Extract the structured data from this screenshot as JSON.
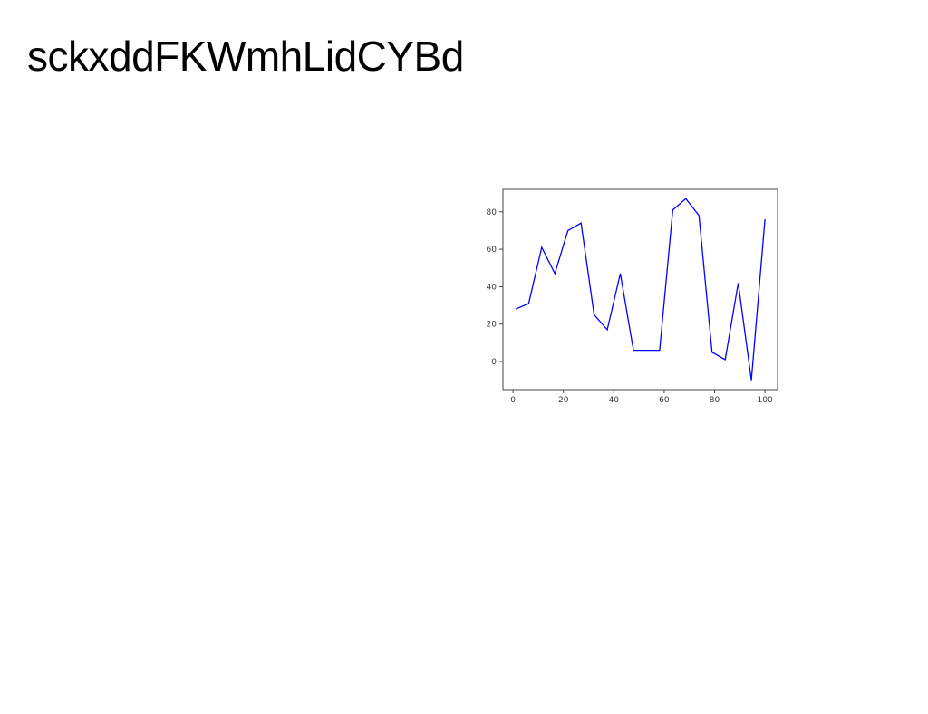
{
  "slide": {
    "title": "sckxddFKWmhLidCYBd"
  },
  "chart_data": {
    "type": "line",
    "title": "",
    "xlabel": "",
    "ylabel": "",
    "xlim": [
      -4,
      105
    ],
    "ylim": [
      -15,
      92
    ],
    "grid": false,
    "x_ticks": [
      0,
      20,
      40,
      60,
      80,
      100
    ],
    "y_ticks": [
      0,
      20,
      40,
      60,
      80
    ],
    "series": [
      {
        "color": "#0000ff",
        "x": [
          1,
          6.2,
          11.4,
          16.6,
          21.8,
          27,
          32.2,
          37.4,
          42.6,
          47.8,
          53,
          58.2,
          63.4,
          68.6,
          73.8,
          79,
          84.2,
          89.4,
          94.6,
          100
        ],
        "y": [
          28,
          31,
          61,
          47,
          70,
          74,
          25,
          17,
          47,
          6,
          6,
          6,
          81,
          87,
          78,
          5,
          1,
          42,
          -10,
          76
        ]
      }
    ]
  }
}
